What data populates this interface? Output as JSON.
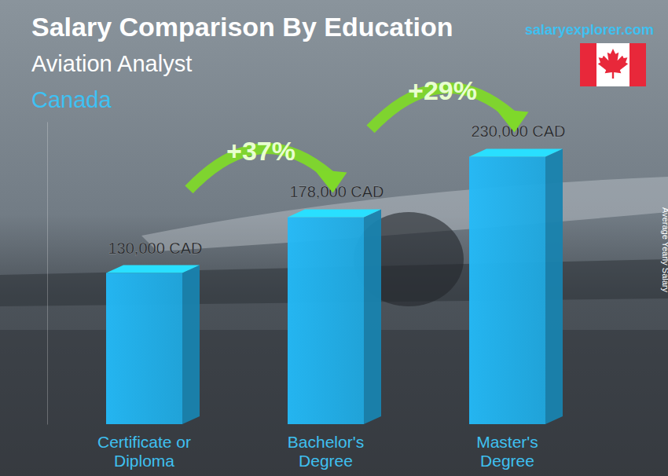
{
  "chart_data": {
    "type": "bar",
    "title": "Salary Comparison By Education",
    "subtitle": "Aviation Analyst",
    "region": "Canada",
    "watermark": "salaryexplorer.com",
    "y_label": "Average Yearly Salary",
    "categories": [
      "Certificate or\nDiploma",
      "Bachelor's\nDegree",
      "Master's\nDegree"
    ],
    "values": [
      130000,
      178000,
      230000
    ],
    "value_labels": [
      "130,000 CAD",
      "178,000 CAD",
      "230,000 CAD"
    ],
    "annotations": [
      "+37%",
      "+29%"
    ],
    "color": "#1fa8e0",
    "ylim": [
      0,
      260000
    ],
    "grid": false,
    "data_labels": true,
    "tick_labels": "x"
  }
}
